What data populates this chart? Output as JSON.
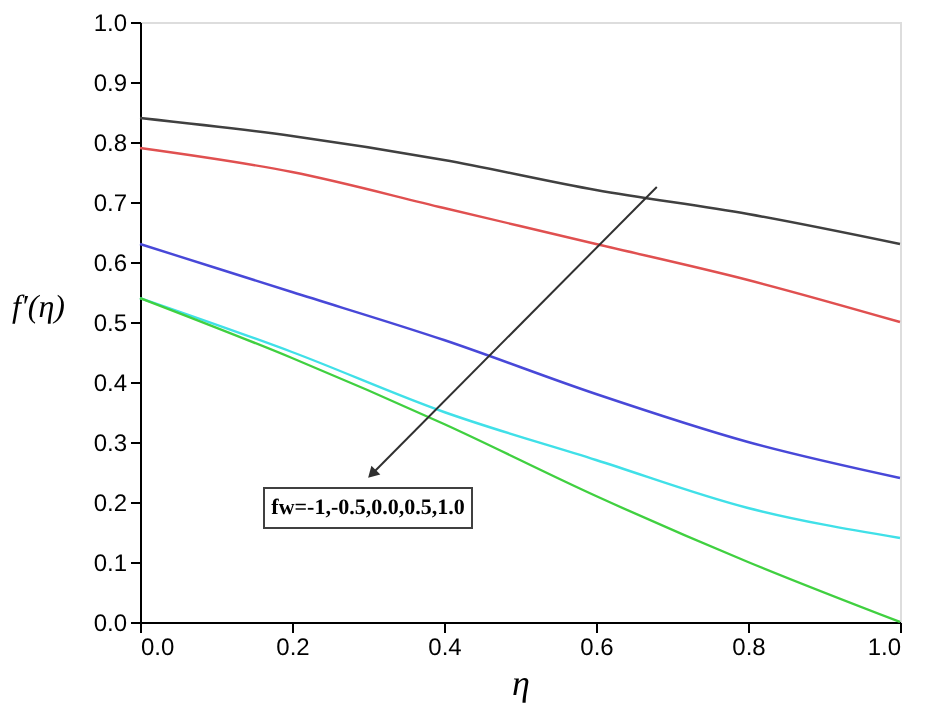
{
  "chart_data": {
    "type": "line",
    "xlabel": "η",
    "ylabel": "f′(η)",
    "x": [
      0.0,
      0.2,
      0.4,
      0.6,
      0.8,
      1.0
    ],
    "series": [
      {
        "color": "#404040",
        "values": [
          0.84,
          0.81,
          0.77,
          0.72,
          0.68,
          0.63
        ]
      },
      {
        "color": "#e05050",
        "values": [
          0.79,
          0.75,
          0.69,
          0.63,
          0.57,
          0.5
        ]
      },
      {
        "color": "#4848d8",
        "values": [
          0.63,
          0.55,
          0.47,
          0.38,
          0.3,
          0.24
        ]
      },
      {
        "color": "#40e0e8",
        "values": [
          0.54,
          0.45,
          0.35,
          0.27,
          0.19,
          0.14
        ]
      },
      {
        "color": "#40d040",
        "values": [
          0.54,
          0.44,
          0.33,
          0.21,
          0.1,
          0.0
        ]
      }
    ],
    "annotations": [
      "fw=-1,-0.5,0.0,0.5,1.0"
    ],
    "xlim": [
      0.0,
      1.0
    ],
    "ylim": [
      0.0,
      1.0
    ],
    "xticks": [
      {
        "value": 0.0,
        "label": "0.0"
      },
      0.2,
      0.4,
      0.6,
      0.8,
      {
        "value": 1.0,
        "label": "1.0"
      }
    ],
    "yticks": [
      {
        "value": 0.0,
        "label": "0.0"
      },
      0.1,
      0.2,
      0.3,
      0.4,
      0.5,
      0.6,
      0.7,
      0.8,
      0.9,
      {
        "value": 1.0,
        "label": "1.0"
      }
    ],
    "grid": false,
    "legend": false,
    "marker": "none",
    "line_style": "solid"
  }
}
